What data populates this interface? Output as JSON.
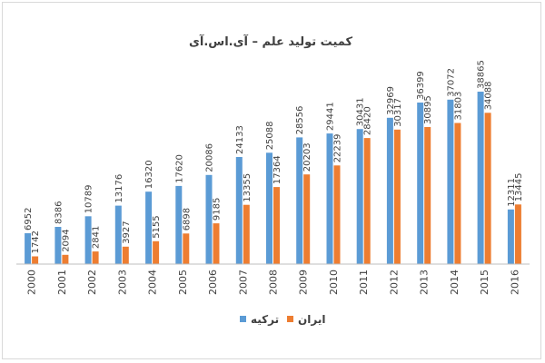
{
  "chart_data": {
    "type": "bar",
    "title": "کمیت تولید علم – آی.اس.آی",
    "xlabel": "",
    "ylabel": "",
    "categories": [
      "2000",
      "2001",
      "2002",
      "2003",
      "2004",
      "2005",
      "2006",
      "2007",
      "2008",
      "2009",
      "2010",
      "2011",
      "2012",
      "2013",
      "2014",
      "2015",
      "2016"
    ],
    "series": [
      {
        "name": "ترکیه",
        "color": "#5B9BD5",
        "values": [
          6952,
          8386,
          10789,
          13176,
          16320,
          17620,
          20086,
          24133,
          25088,
          28556,
          29441,
          30431,
          32969,
          36399,
          37072,
          38865,
          12311
        ]
      },
      {
        "name": "ایران",
        "color": "#ED7D31",
        "values": [
          1742,
          2094,
          2841,
          3927,
          5155,
          6898,
          9185,
          13355,
          17364,
          20203,
          22239,
          28420,
          30317,
          30895,
          31803,
          34088,
          13445
        ]
      }
    ],
    "ylim": [
      0,
      45000
    ],
    "grid": false,
    "legend_position": "bottom",
    "data_labels": true
  }
}
